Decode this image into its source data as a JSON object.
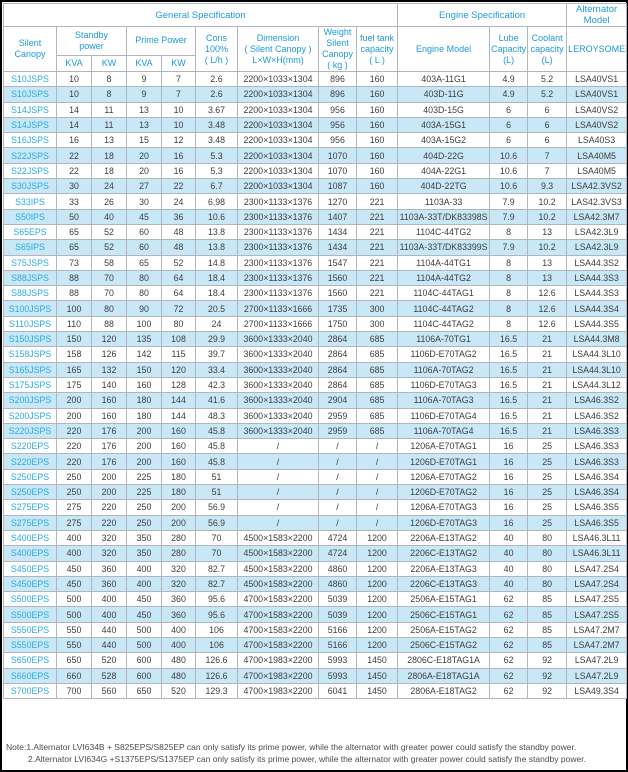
{
  "table": {
    "sections": {
      "general": "General Specification",
      "engine": "Engine Specification",
      "alternator": "Alternator Model"
    },
    "headers": {
      "silent_canopy": "Silent\nCanopy",
      "standby": "Standby\npower",
      "prime": "Prime Power",
      "cons": "Cons\n100%\n( L/h )",
      "dimension": "Dimension\n( Silent Canopy )\nL×W×H(mm)",
      "weight": "Weight\nSilent\nCanopy\n( kg )",
      "fuel": "fuel tank\ncapacity\n( L )",
      "engine_model": "Engine Model",
      "lube": "Lube\nCapacity\n(L)",
      "coolant": "Coolant\ncapacity\n(L)",
      "leroysomer": "LEROYSOMER"
    },
    "units": [
      "KVA",
      "KW",
      "KVA",
      "KW"
    ],
    "rows": [
      [
        "S10JSPS",
        "10",
        "8",
        "9",
        "7",
        "2.6",
        "2200×1033×1304",
        "896",
        "160",
        "403A-11G1",
        "4.9",
        "5.2",
        "LSA40VS1"
      ],
      [
        "S10JSPS",
        "10",
        "8",
        "9",
        "7",
        "2.6",
        "2200×1033×1304",
        "896",
        "160",
        "403D-11G",
        "4.9",
        "5.2",
        "LSA40VS1"
      ],
      [
        "S14JSPS",
        "14",
        "11",
        "13",
        "10",
        "3.67",
        "2200×1033×1304",
        "956",
        "160",
        "403D-15G",
        "6",
        "6",
        "LSA40VS2"
      ],
      [
        "S14JSPS",
        "14",
        "11",
        "13",
        "10",
        "3.48",
        "2200×1033×1304",
        "956",
        "160",
        "403A-15G1",
        "6",
        "6",
        "LSA40VS2"
      ],
      [
        "S16JSPS",
        "16",
        "13",
        "15",
        "12",
        "3.48",
        "2200×1033×1304",
        "956",
        "160",
        "403A-15G2",
        "6",
        "6",
        "LSA40S3"
      ],
      [
        "S22JSPS",
        "22",
        "18",
        "20",
        "16",
        "5.3",
        "2200×1033×1304",
        "1070",
        "160",
        "404D-22G",
        "10.6",
        "7",
        "LSA40M5"
      ],
      [
        "S22JSPS",
        "22",
        "18",
        "20",
        "16",
        "5.3",
        "2200×1033×1304",
        "1070",
        "160",
        "404A-22G1",
        "10.6",
        "7",
        "LSA40M5"
      ],
      [
        "S30JSPS",
        "30",
        "24",
        "27",
        "22",
        "6.7",
        "2200×1033×1304",
        "1087",
        "160",
        "404D-22TG",
        "10.6",
        "9.3",
        "LSA42.3VS2"
      ],
      [
        "S33IPS",
        "33",
        "26",
        "30",
        "24",
        "6.98",
        "2300×1133×1376",
        "1270",
        "221",
        "1103A-33",
        "7.9",
        "10.2",
        "LAS42.3VS3"
      ],
      [
        "S50IPS",
        "50",
        "40",
        "45",
        "36",
        "10.6",
        "2300×1133×1376",
        "1407",
        "221",
        "1103A-33T/DK83398S",
        "7.9",
        "10.2",
        "LSA42.3M7"
      ],
      [
        "S65EPS",
        "65",
        "52",
        "60",
        "48",
        "13.8",
        "2300×1133×1376",
        "1434",
        "221",
        "1104C-44TG2",
        "8",
        "13",
        "LSA42.3L9"
      ],
      [
        "S65IPS",
        "65",
        "52",
        "60",
        "48",
        "13.8",
        "2300×1133×1376",
        "1434",
        "221",
        "1103A-33T/DK83399S",
        "7.9",
        "10.2",
        "LSA42.3L9"
      ],
      [
        "S75JSPS",
        "73",
        "58",
        "65",
        "52",
        "14.8",
        "2300×1133×1376",
        "1547",
        "221",
        "1104A-44TG1",
        "8",
        "13",
        "LSA44.3S2"
      ],
      [
        "S88JSPS",
        "88",
        "70",
        "80",
        "64",
        "18.4",
        "2300×1133×1376",
        "1560",
        "221",
        "1104A-44TG2",
        "8",
        "13",
        "LSA44.3S3"
      ],
      [
        "S88JSPS",
        "88",
        "70",
        "80",
        "64",
        "18.4",
        "2300×1133×1376",
        "1560",
        "221",
        "1104C-44TAG1",
        "8",
        "12.6",
        "LSA44.3S3"
      ],
      [
        "S100JSPS",
        "100",
        "80",
        "90",
        "72",
        "20.5",
        "2700×1133×1666",
        "1735",
        "300",
        "1104C-44TAG2",
        "8",
        "12.6",
        "LSA44.3S4"
      ],
      [
        "S110JSPS",
        "110",
        "88",
        "100",
        "80",
        "24",
        "2700×1133×1666",
        "1750",
        "300",
        "1104C-44TAG2",
        "8",
        "12.6",
        "LSA44.3S5"
      ],
      [
        "S150JSPS",
        "150",
        "120",
        "135",
        "108",
        "29.9",
        "3600×1333×2040",
        "2864",
        "685",
        "1106A-70TG1",
        "16.5",
        "21",
        "LSA44.3M8"
      ],
      [
        "S158JSPS",
        "158",
        "126",
        "142",
        "115",
        "39.7",
        "3600×1333×2040",
        "2864",
        "685",
        "1106D-E70TAG2",
        "16.5",
        "21",
        "LSA44.3L10"
      ],
      [
        "S165JSPS",
        "165",
        "132",
        "150",
        "120",
        "33.4",
        "3600×1333×2040",
        "2864",
        "685",
        "1106A-70TAG2",
        "16.5",
        "21",
        "LSA44.3L10"
      ],
      [
        "S175JSPS",
        "175",
        "140",
        "160",
        "128",
        "42.3",
        "3600×1333×2040",
        "2864",
        "685",
        "1106D-E70TAG3",
        "16.5",
        "21",
        "LSA44.3L12"
      ],
      [
        "S200JSPS",
        "200",
        "160",
        "180",
        "144",
        "41.6",
        "3600×1333×2040",
        "2904",
        "685",
        "1106A-70TAG3",
        "16.5",
        "21",
        "LSA46.3S2"
      ],
      [
        "S200JSPS",
        "200",
        "160",
        "180",
        "144",
        "48.3",
        "3600×1333×2040",
        "2959",
        "685",
        "1106D-E70TAG4",
        "16.5",
        "21",
        "LSA46.3S2"
      ],
      [
        "S220JSPS",
        "220",
        "176",
        "200",
        "160",
        "45.8",
        "3600×1333×2040",
        "2959",
        "685",
        "1106A-70TAG4",
        "16.5",
        "21",
        "LSA46.3S3"
      ],
      [
        "S220EPS",
        "220",
        "176",
        "200",
        "160",
        "45.8",
        "/",
        "/",
        "/",
        "1206A-E70TAG1",
        "16",
        "25",
        "LSA46.3S3"
      ],
      [
        "S220EPS",
        "220",
        "176",
        "200",
        "160",
        "45.8",
        "/",
        "/",
        "/",
        "1206D-E70TAG1",
        "16",
        "25",
        "LSA46.3S3"
      ],
      [
        "S250EPS",
        "250",
        "200",
        "225",
        "180",
        "51",
        "/",
        "/",
        "/",
        "1206A-E70TAG2",
        "16",
        "25",
        "LSA46.3S4"
      ],
      [
        "S250EPS",
        "250",
        "200",
        "225",
        "180",
        "51",
        "/",
        "/",
        "/",
        "1206D-E70TAG2",
        "16",
        "25",
        "LSA46.3S4"
      ],
      [
        "S275EPS",
        "275",
        "220",
        "250",
        "200",
        "56.9",
        "/",
        "/",
        "/",
        "1206A-E70TAG3",
        "16",
        "25",
        "LSA46.3S5"
      ],
      [
        "S275EPS",
        "275",
        "220",
        "250",
        "200",
        "56.9",
        "/",
        "/",
        "/",
        "1206D-E70TAG3",
        "16",
        "25",
        "LSA46.3S5"
      ],
      [
        "S400EPS",
        "400",
        "320",
        "350",
        "280",
        "70",
        "4500×1583×2200",
        "4724",
        "1200",
        "2206A-E13TAG2",
        "40",
        "80",
        "LSA46.3L11"
      ],
      [
        "S400EPS",
        "400",
        "320",
        "350",
        "280",
        "70",
        "4500×1583×2200",
        "4724",
        "1200",
        "2206C-E13TAG2",
        "40",
        "80",
        "LSA46.3L11"
      ],
      [
        "S450EPS",
        "450",
        "360",
        "400",
        "320",
        "82.7",
        "4500×1583×2200",
        "4860",
        "1200",
        "2206A-E13TAG3",
        "40",
        "80",
        "LSA47.2S4"
      ],
      [
        "S450EPS",
        "450",
        "360",
        "400",
        "320",
        "82.7",
        "4500×1583×2200",
        "4860",
        "1200",
        "2206C-E13TAG3",
        "40",
        "80",
        "LSA47.2S4"
      ],
      [
        "S500EPS",
        "500",
        "400",
        "450",
        "360",
        "95.6",
        "4700×1583×2200",
        "5039",
        "1200",
        "2506A-E15TAG1",
        "62",
        "85",
        "LSA47.2S5"
      ],
      [
        "S500EPS",
        "500",
        "400",
        "450",
        "360",
        "95.6",
        "4700×1583×2200",
        "5039",
        "1200",
        "2506C-E15TAG1",
        "62",
        "85",
        "LSA47.2S5"
      ],
      [
        "S550EPS",
        "550",
        "440",
        "500",
        "400",
        "106",
        "4700×1583×2200",
        "5166",
        "1200",
        "2506A-E15TAG2",
        "62",
        "85",
        "LSA47.2M7"
      ],
      [
        "S550EPS",
        "550",
        "440",
        "500",
        "400",
        "106",
        "4700×1583×2200",
        "5166",
        "1200",
        "2506C-E15TAG2",
        "62",
        "85",
        "LSA47.2M7"
      ],
      [
        "S650EPS",
        "650",
        "520",
        "600",
        "480",
        "126.6",
        "4700×1983×2200",
        "5993",
        "1450",
        "2806C-E18TAG1A",
        "62",
        "92",
        "LSA47.2L9"
      ],
      [
        "S660EPS",
        "660",
        "528",
        "600",
        "480",
        "126.6",
        "4700×1983×2200",
        "5993",
        "1450",
        "2806A-E18TAG1A",
        "62",
        "92",
        "LSA47.2L9"
      ],
      [
        "S700EPS",
        "700",
        "560",
        "650",
        "520",
        "129.3",
        "4700×1983×2200",
        "6041",
        "1450",
        "2806A-E18TAG2",
        "62",
        "92",
        "LSA49.3S4"
      ]
    ]
  },
  "notes": [
    "Note:1.Alternator LVI634B + S825EPS/S825EP can only satisfy its prime power, while the alternator with greater power could satisfy the standby power.",
    "2.Alternator LVI634G +S1375EPS/S1375EP can only satisfy its prime power, while the alternator with greater power could satisfy the standby power."
  ],
  "colors": {
    "header_blue": "#1e9ad6",
    "link_blue": "#2baae2",
    "row_alt_bg": "#c8e8f8",
    "border_gray": "#b2b6ba"
  }
}
